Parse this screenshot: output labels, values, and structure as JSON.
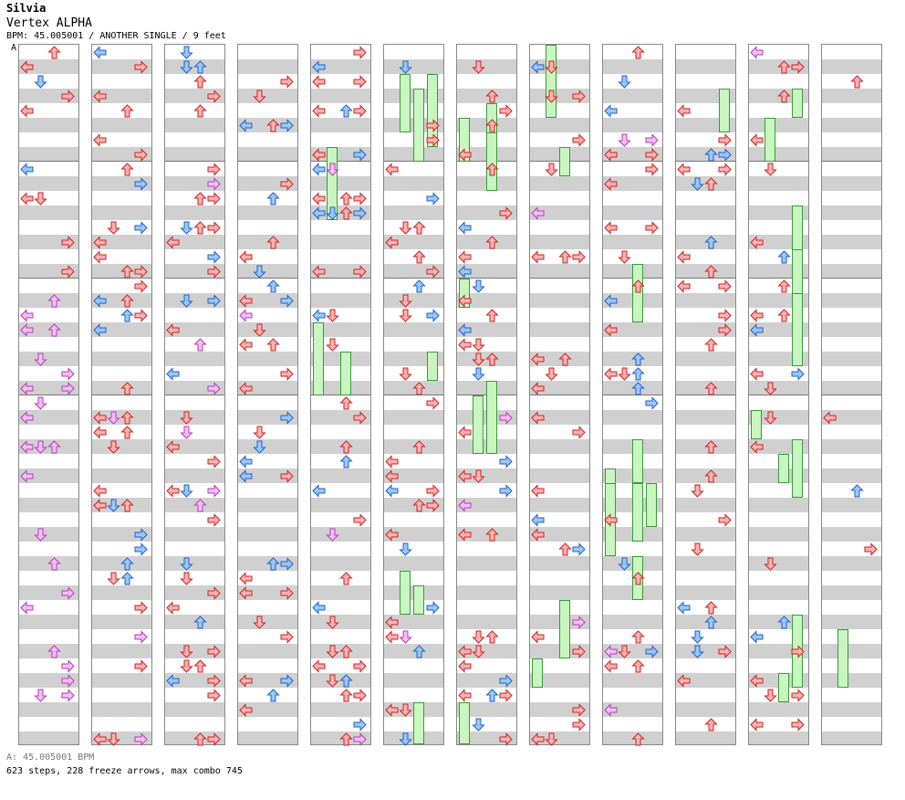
{
  "header": {
    "artist": "Silvia",
    "title": "Vertex ALPHA",
    "meta": "BPM: 45.005001 / ANOTHER SINGLE / 9 feet"
  },
  "marker": "A",
  "footer": {
    "bpm_line": "A: 45.005001 BPM",
    "stats": "623 steps, 228 freeze arrows, max combo 745"
  },
  "chart": {
    "columns": 12,
    "measures_per_column": 4,
    "lanes": [
      "left",
      "down",
      "up",
      "right"
    ],
    "colors": {
      "red": "#f7b4b4",
      "red_stroke": "#d22020",
      "blue": "#9cc8f8",
      "blue_stroke": "#2060c8",
      "pink": "#f7bef7",
      "pink_stroke": "#b040b0",
      "freeze": "#c8f5c0",
      "freeze_stroke": "#3a9a3a",
      "stripe": "#d0d0d0"
    },
    "icons": [
      "arrow-left-icon",
      "arrow-down-icon",
      "arrow-up-icon",
      "arrow-right-icon",
      "freeze-arrow-icon"
    ]
  }
}
